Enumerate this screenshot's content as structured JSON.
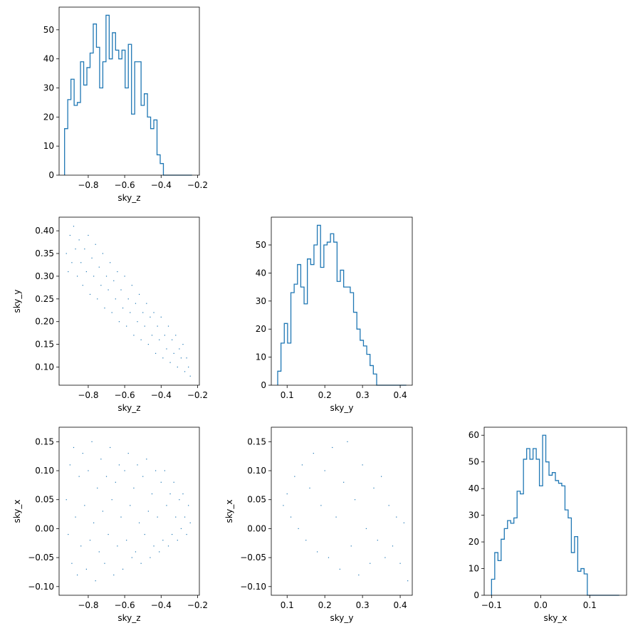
{
  "chart_data": [
    {
      "id": "hist_z",
      "type": "histogram",
      "variable": "sky_z",
      "xlabel": "sky_z",
      "ylabel": "",
      "xlim": [
        -0.96,
        -0.19
      ],
      "ylim": [
        0,
        57.8
      ],
      "xticks": [
        -0.8,
        -0.6,
        -0.4,
        -0.2
      ],
      "xtick_labels": [
        "−0.8",
        "−0.6",
        "−0.4",
        "−0.2"
      ],
      "yticks": [
        0,
        10,
        20,
        30,
        40,
        50
      ],
      "ytick_labels": [
        "0",
        "10",
        "20",
        "30",
        "40",
        "50"
      ],
      "bin_edges": [
        -0.93,
        -0.9125,
        -0.895,
        -0.8775,
        -0.86,
        -0.8425,
        -0.825,
        -0.8075,
        -0.79,
        -0.7725,
        -0.755,
        -0.7375,
        -0.72,
        -0.7025,
        -0.685,
        -0.6675,
        -0.65,
        -0.6325,
        -0.615,
        -0.5975,
        -0.58,
        -0.5625,
        -0.545,
        -0.5275,
        -0.51,
        -0.4925,
        -0.475,
        -0.4575,
        -0.44,
        -0.4225,
        -0.405,
        -0.3875,
        -0.37,
        -0.3525,
        -0.335,
        -0.3175,
        -0.3,
        -0.2825,
        -0.265,
        -0.2475,
        -0.23
      ],
      "counts": [
        16,
        26,
        33,
        24,
        25,
        39,
        31,
        37,
        42,
        52,
        44,
        30,
        39,
        55,
        40,
        49,
        43,
        40,
        43,
        30,
        45,
        21,
        39,
        39,
        24,
        28,
        20,
        16,
        19,
        7,
        4,
        0,
        0,
        0,
        0,
        0,
        0,
        0,
        0,
        0
      ],
      "grid": false
    },
    {
      "id": "scatter_zy",
      "type": "scatter",
      "x_variable": "sky_z",
      "y_variable": "sky_y",
      "xlabel": "sky_z",
      "ylabel": "sky_y",
      "xlim": [
        -0.96,
        -0.19
      ],
      "ylim": [
        0.06,
        0.43
      ],
      "xticks": [
        -0.8,
        -0.6,
        -0.4,
        -0.2
      ],
      "xtick_labels": [
        "−0.8",
        "−0.6",
        "−0.4",
        "−0.2"
      ],
      "yticks": [
        0.1,
        0.15,
        0.2,
        0.25,
        0.3,
        0.35,
        0.4
      ],
      "ytick_labels": [
        "0.10",
        "0.15",
        "0.20",
        "0.25",
        "0.30",
        "0.35",
        "0.40"
      ],
      "points": [
        [
          -0.92,
          0.35
        ],
        [
          -0.91,
          0.31
        ],
        [
          -0.9,
          0.39
        ],
        [
          -0.89,
          0.33
        ],
        [
          -0.88,
          0.41
        ],
        [
          -0.87,
          0.36
        ],
        [
          -0.86,
          0.3
        ],
        [
          -0.85,
          0.38
        ],
        [
          -0.84,
          0.33
        ],
        [
          -0.83,
          0.28
        ],
        [
          -0.82,
          0.36
        ],
        [
          -0.81,
          0.31
        ],
        [
          -0.8,
          0.39
        ],
        [
          -0.79,
          0.26
        ],
        [
          -0.78,
          0.34
        ],
        [
          -0.77,
          0.3
        ],
        [
          -0.76,
          0.37
        ],
        [
          -0.75,
          0.25
        ],
        [
          -0.74,
          0.32
        ],
        [
          -0.73,
          0.28
        ],
        [
          -0.72,
          0.35
        ],
        [
          -0.71,
          0.23
        ],
        [
          -0.7,
          0.3
        ],
        [
          -0.69,
          0.27
        ],
        [
          -0.68,
          0.33
        ],
        [
          -0.67,
          0.22
        ],
        [
          -0.66,
          0.29
        ],
        [
          -0.65,
          0.25
        ],
        [
          -0.64,
          0.31
        ],
        [
          -0.63,
          0.2
        ],
        [
          -0.62,
          0.27
        ],
        [
          -0.61,
          0.23
        ],
        [
          -0.6,
          0.3
        ],
        [
          -0.59,
          0.19
        ],
        [
          -0.58,
          0.25
        ],
        [
          -0.57,
          0.22
        ],
        [
          -0.56,
          0.28
        ],
        [
          -0.55,
          0.17
        ],
        [
          -0.54,
          0.24
        ],
        [
          -0.53,
          0.2
        ],
        [
          -0.52,
          0.26
        ],
        [
          -0.51,
          0.16
        ],
        [
          -0.5,
          0.22
        ],
        [
          -0.49,
          0.19
        ],
        [
          -0.48,
          0.24
        ],
        [
          -0.47,
          0.15
        ],
        [
          -0.46,
          0.21
        ],
        [
          -0.45,
          0.17
        ],
        [
          -0.44,
          0.22
        ],
        [
          -0.43,
          0.13
        ],
        [
          -0.42,
          0.19
        ],
        [
          -0.41,
          0.16
        ],
        [
          -0.4,
          0.21
        ],
        [
          -0.39,
          0.12
        ],
        [
          -0.38,
          0.17
        ],
        [
          -0.37,
          0.14
        ],
        [
          -0.36,
          0.19
        ],
        [
          -0.35,
          0.11
        ],
        [
          -0.34,
          0.16
        ],
        [
          -0.33,
          0.13
        ],
        [
          -0.32,
          0.17
        ],
        [
          -0.31,
          0.1
        ],
        [
          -0.3,
          0.14
        ],
        [
          -0.29,
          0.12
        ],
        [
          -0.28,
          0.15
        ],
        [
          -0.27,
          0.09
        ],
        [
          -0.26,
          0.12
        ],
        [
          -0.25,
          0.1
        ],
        [
          -0.24,
          0.08
        ]
      ],
      "grid": false
    },
    {
      "id": "hist_y",
      "type": "histogram",
      "variable": "sky_y",
      "xlabel": "sky_y",
      "ylabel": "",
      "xlim": [
        0.058,
        0.432
      ],
      "ylim": [
        0,
        59.9
      ],
      "xticks": [
        0.1,
        0.2,
        0.3,
        0.4
      ],
      "xtick_labels": [
        "0.1",
        "0.2",
        "0.3",
        "0.4"
      ],
      "yticks": [
        0,
        10,
        20,
        30,
        40,
        50
      ],
      "ytick_labels": [
        "0",
        "10",
        "20",
        "30",
        "40",
        "50"
      ],
      "bin_edges": [
        0.075,
        0.0837,
        0.0925,
        0.1012,
        0.11,
        0.1187,
        0.1275,
        0.1362,
        0.145,
        0.1537,
        0.1625,
        0.1712,
        0.18,
        0.1887,
        0.1975,
        0.2062,
        0.215,
        0.2237,
        0.2325,
        0.2412,
        0.25,
        0.2587,
        0.2675,
        0.2762,
        0.285,
        0.2937,
        0.3025,
        0.3112,
        0.32,
        0.3287,
        0.3375,
        0.3462,
        0.355,
        0.3637,
        0.3725,
        0.3812,
        0.39,
        0.3987,
        0.4075,
        0.4162
      ],
      "counts": [
        5,
        15,
        22,
        15,
        33,
        36,
        43,
        35,
        29,
        45,
        43,
        50,
        57,
        42,
        50,
        51,
        54,
        51,
        37,
        41,
        35,
        35,
        33,
        26,
        20,
        16,
        14,
        11,
        7,
        4,
        0,
        0,
        0,
        0,
        0,
        0,
        0,
        0,
        0
      ],
      "grid": false
    },
    {
      "id": "scatter_zx",
      "type": "scatter",
      "x_variable": "sky_z",
      "y_variable": "sky_x",
      "xlabel": "sky_z",
      "ylabel": "sky_x",
      "xlim": [
        -0.96,
        -0.19
      ],
      "ylim": [
        -0.115,
        0.175
      ],
      "xticks": [
        -0.8,
        -0.6,
        -0.4,
        -0.2
      ],
      "xtick_labels": [
        "−0.8",
        "−0.6",
        "−0.4",
        "−0.2"
      ],
      "yticks": [
        -0.1,
        -0.05,
        0.0,
        0.05,
        0.1,
        0.15
      ],
      "ytick_labels": [
        "−0.10",
        "−0.05",
        "0.00",
        "0.05",
        "0.10",
        "0.15"
      ],
      "points": [
        [
          -0.92,
          0.05
        ],
        [
          -0.91,
          -0.01
        ],
        [
          -0.9,
          0.11
        ],
        [
          -0.89,
          -0.06
        ],
        [
          -0.88,
          0.14
        ],
        [
          -0.87,
          0.02
        ],
        [
          -0.86,
          -0.08
        ],
        [
          -0.85,
          0.09
        ],
        [
          -0.84,
          -0.03
        ],
        [
          -0.83,
          0.13
        ],
        [
          -0.82,
          0.04
        ],
        [
          -0.81,
          -0.07
        ],
        [
          -0.8,
          0.1
        ],
        [
          -0.79,
          -0.02
        ],
        [
          -0.78,
          0.15
        ],
        [
          -0.77,
          0.01
        ],
        [
          -0.76,
          -0.09
        ],
        [
          -0.75,
          0.07
        ],
        [
          -0.74,
          -0.04
        ],
        [
          -0.73,
          0.12
        ],
        [
          -0.72,
          0.03
        ],
        [
          -0.71,
          -0.06
        ],
        [
          -0.7,
          0.09
        ],
        [
          -0.69,
          -0.01
        ],
        [
          -0.68,
          0.14
        ],
        [
          -0.67,
          0.05
        ],
        [
          -0.66,
          -0.08
        ],
        [
          -0.65,
          0.08
        ],
        [
          -0.64,
          -0.03
        ],
        [
          -0.63,
          0.11
        ],
        [
          -0.62,
          0.02
        ],
        [
          -0.61,
          -0.07
        ],
        [
          -0.6,
          0.1
        ],
        [
          -0.59,
          -0.02
        ],
        [
          -0.58,
          0.13
        ],
        [
          -0.57,
          0.04
        ],
        [
          -0.56,
          -0.05
        ],
        [
          -0.55,
          0.07
        ],
        [
          -0.54,
          -0.04
        ],
        [
          -0.53,
          0.11
        ],
        [
          -0.52,
          0.01
        ],
        [
          -0.51,
          -0.06
        ],
        [
          -0.5,
          0.09
        ],
        [
          -0.49,
          -0.01
        ],
        [
          -0.48,
          0.12
        ],
        [
          -0.47,
          0.03
        ],
        [
          -0.46,
          -0.05
        ],
        [
          -0.45,
          0.06
        ],
        [
          -0.44,
          -0.03
        ],
        [
          -0.43,
          0.1
        ],
        [
          -0.42,
          0.02
        ],
        [
          -0.41,
          -0.04
        ],
        [
          -0.4,
          0.08
        ],
        [
          -0.39,
          -0.02
        ],
        [
          -0.38,
          0.1
        ],
        [
          -0.37,
          0.04
        ],
        [
          -0.36,
          -0.03
        ],
        [
          -0.35,
          0.06
        ],
        [
          -0.34,
          -0.01
        ],
        [
          -0.33,
          0.08
        ],
        [
          -0.32,
          0.02
        ],
        [
          -0.31,
          -0.02
        ],
        [
          -0.3,
          0.05
        ],
        [
          -0.29,
          0.0
        ],
        [
          -0.28,
          0.06
        ],
        [
          -0.27,
          0.02
        ],
        [
          -0.26,
          -0.01
        ],
        [
          -0.25,
          0.04
        ],
        [
          -0.24,
          0.01
        ]
      ],
      "grid": false
    },
    {
      "id": "scatter_yx",
      "type": "scatter",
      "x_variable": "sky_y",
      "y_variable": "sky_x",
      "xlabel": "sky_y",
      "ylabel": "sky_x",
      "xlim": [
        0.058,
        0.432
      ],
      "ylim": [
        -0.115,
        0.175
      ],
      "xticks": [
        0.1,
        0.2,
        0.3,
        0.4
      ],
      "xtick_labels": [
        "0.1",
        "0.2",
        "0.3",
        "0.4"
      ],
      "yticks": [
        -0.1,
        -0.05,
        0.0,
        0.05,
        0.1,
        0.15
      ],
      "ytick_labels": [
        "−0.10",
        "−0.05",
        "0.00",
        "0.05",
        "0.10",
        "0.15"
      ],
      "points": [
        [
          0.09,
          0.04
        ],
        [
          0.1,
          0.06
        ],
        [
          0.11,
          0.02
        ],
        [
          0.12,
          0.09
        ],
        [
          0.13,
          0.0
        ],
        [
          0.14,
          0.11
        ],
        [
          0.15,
          -0.02
        ],
        [
          0.16,
          0.07
        ],
        [
          0.17,
          0.13
        ],
        [
          0.18,
          -0.04
        ],
        [
          0.19,
          0.04
        ],
        [
          0.2,
          0.1
        ],
        [
          0.21,
          -0.05
        ],
        [
          0.22,
          0.14
        ],
        [
          0.23,
          0.02
        ],
        [
          0.24,
          -0.07
        ],
        [
          0.25,
          0.08
        ],
        [
          0.26,
          0.15
        ],
        [
          0.27,
          -0.03
        ],
        [
          0.28,
          0.05
        ],
        [
          0.29,
          -0.08
        ],
        [
          0.3,
          0.11
        ],
        [
          0.31,
          0.0
        ],
        [
          0.32,
          -0.06
        ],
        [
          0.33,
          0.07
        ],
        [
          0.34,
          -0.02
        ],
        [
          0.35,
          0.09
        ],
        [
          0.36,
          -0.05
        ],
        [
          0.37,
          0.04
        ],
        [
          0.38,
          -0.03
        ],
        [
          0.39,
          0.02
        ],
        [
          0.4,
          -0.06
        ],
        [
          0.41,
          0.01
        ],
        [
          0.42,
          -0.09
        ]
      ],
      "grid": false
    },
    {
      "id": "hist_x",
      "type": "histogram",
      "variable": "sky_x",
      "xlabel": "sky_x",
      "ylabel": "",
      "xlim": [
        -0.115,
        0.175
      ],
      "ylim": [
        0,
        63
      ],
      "xticks": [
        -0.1,
        0.0,
        0.1
      ],
      "xtick_labels": [
        "−0.1",
        "0.0",
        "0.1"
      ],
      "yticks": [
        0,
        10,
        20,
        30,
        40,
        50,
        60
      ],
      "ytick_labels": [
        "0",
        "10",
        "20",
        "30",
        "40",
        "50",
        "60"
      ],
      "bin_edges": [
        -0.1,
        -0.0935,
        -0.087,
        -0.0805,
        -0.074,
        -0.0675,
        -0.061,
        -0.0545,
        -0.048,
        -0.0415,
        -0.035,
        -0.0285,
        -0.022,
        -0.0155,
        -0.009,
        -0.0025,
        0.004,
        0.0105,
        0.017,
        0.0235,
        0.03,
        0.0365,
        0.043,
        0.0495,
        0.056,
        0.0625,
        0.069,
        0.0755,
        0.082,
        0.0885,
        0.095,
        0.1015,
        0.108,
        0.1145,
        0.121,
        0.1275,
        0.134,
        0.1405,
        0.147,
        0.1535,
        0.16
      ],
      "counts": [
        6,
        16,
        13,
        21,
        25,
        28,
        27,
        29,
        39,
        38,
        51,
        55,
        51,
        55,
        51,
        41,
        60,
        50,
        45,
        46,
        43,
        42,
        41,
        32,
        29,
        16,
        22,
        9,
        10,
        8,
        0,
        0,
        0,
        0,
        0,
        0,
        0,
        0,
        0,
        0
      ],
      "grid": false
    }
  ],
  "style": {
    "series_color": "#1f77b4",
    "axis_color": "#000000",
    "background": "#ffffff"
  }
}
